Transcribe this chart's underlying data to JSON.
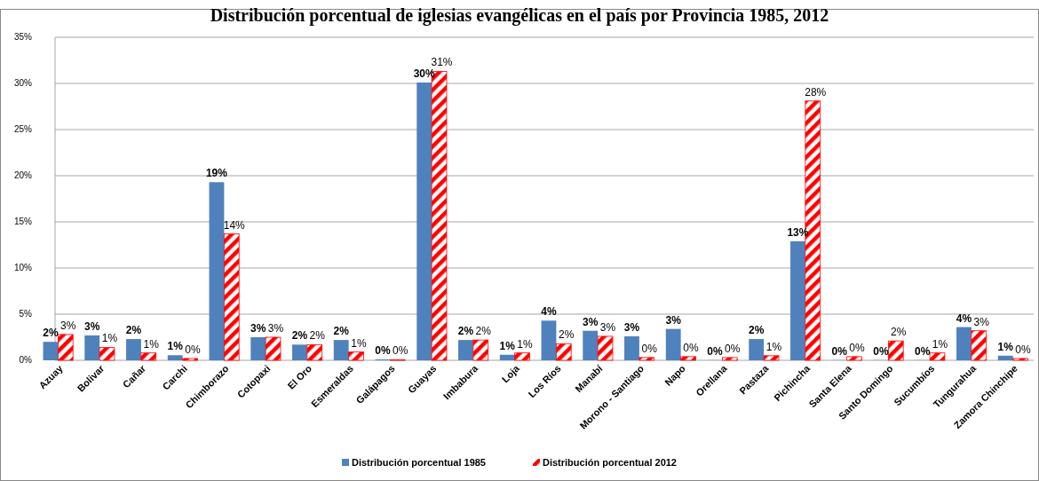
{
  "chart_data": {
    "type": "bar",
    "title": "Distribución porcentual de iglesias evangélicas en el país por Provincia 1985, 2012",
    "categories": [
      "Azuay",
      "Bolivar",
      "Cañar",
      "Carchi",
      "Chimborazo",
      "Cotopaxi",
      "El Oro",
      "Esmeraldas",
      "Galápagos",
      "Guayas",
      "Imbabura",
      "Loja",
      "Los Ríos",
      "Manabí",
      "Morono - Santiago",
      "Napo",
      "Orellana",
      "Pastaza",
      "Pichincha",
      "Santa Elena",
      "Santo Domingo",
      "Sucumbíos",
      "Tungurahua",
      "Zamora Chinchipe"
    ],
    "series": [
      {
        "name": "Distribución porcentual 1985",
        "color": "#4f81bd",
        "values": [
          2.0,
          2.7,
          2.3,
          0.55,
          19.3,
          2.5,
          1.7,
          2.2,
          0.1,
          30.1,
          2.2,
          0.6,
          4.3,
          3.2,
          2.6,
          3.4,
          0.02,
          2.3,
          12.9,
          0.02,
          0.02,
          0.02,
          3.6,
          0.5
        ],
        "value_labels": [
          "2%",
          "3%",
          "2%",
          "1%",
          "19%",
          "3%",
          "2%",
          "2%",
          "0%",
          "30%",
          "2%",
          "1%",
          "4%",
          "3%",
          "3%",
          "3%",
          "0%",
          "2%",
          "13%",
          "0%",
          "0%",
          "0%",
          "4%",
          "1%"
        ]
      },
      {
        "name": "Distribución porcentual 2012",
        "color": "#ff0000",
        "values": [
          2.8,
          1.4,
          0.8,
          0.2,
          13.7,
          2.5,
          1.7,
          0.9,
          0.05,
          31.3,
          2.2,
          0.8,
          1.8,
          2.6,
          0.3,
          0.4,
          0.3,
          0.5,
          28.1,
          0.4,
          2.1,
          0.8,
          3.2,
          0.2
        ],
        "value_labels": [
          "3%",
          "1%",
          "1%",
          "0%",
          "14%",
          "3%",
          "2%",
          "1%",
          "0%",
          "31%",
          "2%",
          "1%",
          "2%",
          "3%",
          "0%",
          "0%",
          "0%",
          "1%",
          "28%",
          "0%",
          "2%",
          "1%",
          "3%",
          "0%"
        ]
      }
    ],
    "ylim": [
      0,
      35
    ],
    "yticks": [
      {
        "value": 0,
        "label": "0%"
      },
      {
        "value": 5,
        "label": "5%"
      },
      {
        "value": 10,
        "label": "10%"
      },
      {
        "value": 15,
        "label": "15%"
      },
      {
        "value": 20,
        "label": "20%"
      },
      {
        "value": 25,
        "label": "25%"
      },
      {
        "value": 30,
        "label": "30%"
      },
      {
        "value": 35,
        "label": "35%"
      }
    ],
    "grid": "y",
    "legend": "bottom"
  }
}
